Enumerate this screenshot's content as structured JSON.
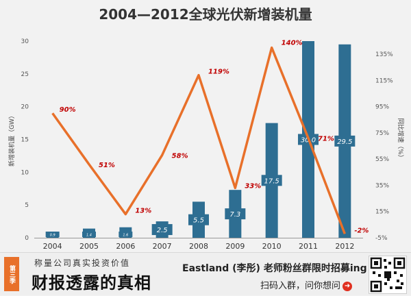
{
  "title": "2004—2012全球光伏新增装机量",
  "colors": {
    "bar": "#2e6e92",
    "line": "#e8702a",
    "pct_label": "#c00000",
    "badge": "#e8702a"
  },
  "chart_data": {
    "type": "bar",
    "categories": [
      "2004",
      "2005",
      "2006",
      "2007",
      "2008",
      "2009",
      "2010",
      "2011",
      "2012"
    ],
    "values": [
      0.9,
      1.4,
      1.6,
      2.5,
      5.5,
      7.3,
      17.5,
      30.0,
      29.5
    ],
    "bar_labels": [
      "0.9",
      "1.4",
      "1.6",
      "2.5",
      "5.5",
      "7.3",
      "17.5",
      "30.0",
      "29.5"
    ],
    "ylabel": "新增装机量（GW）",
    "ylim": [
      0,
      30
    ],
    "yticks": [
      "0",
      "5",
      "10",
      "15",
      "20",
      "25",
      "30"
    ],
    "secondary": {
      "type": "line",
      "values": [
        90,
        51,
        13,
        58,
        119,
        33,
        140,
        71,
        -2
      ],
      "labels": [
        "90%",
        "51%",
        "13%",
        "58%",
        "119%",
        "33%",
        "140%",
        "71%",
        "-2%"
      ],
      "ylabel": "同比增速（%）",
      "ylim": [
        -5,
        145
      ],
      "yticks": [
        "-5%",
        "15%",
        "35%",
        "55%",
        "75%",
        "95%",
        "115%",
        "135%"
      ]
    },
    "grid": false
  },
  "banner": {
    "season_badge": "第三季",
    "subtitle": "称量公司真实投资价值",
    "title": "财报透露的真相",
    "promo": "Eastland (李彤) 老师粉丝群限时招募ing",
    "cta": "扫码入群，问你想问"
  }
}
